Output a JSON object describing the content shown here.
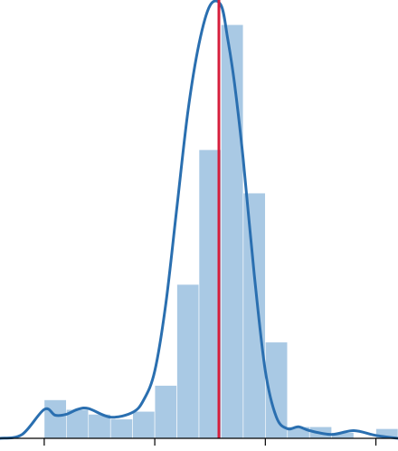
{
  "chart_data": {
    "type": "bar",
    "title": "",
    "xlabel": "",
    "ylabel": "",
    "x_range": [
      -2.0,
      16.0
    ],
    "ylim": [
      0,
      0.45
    ],
    "grid": false,
    "legend": "none",
    "colors": {
      "histogram": "#a9c9e4",
      "kde": "#2a6fb0",
      "reference_line": "#d61e3c"
    },
    "bin_width": 1.0,
    "histogram": {
      "bin_edges": [
        0,
        1,
        2,
        3,
        4,
        5,
        6,
        7,
        8,
        9,
        10,
        11,
        12,
        13,
        14,
        15,
        16
      ],
      "values": [
        0.04,
        0.03,
        0.025,
        0.02,
        0.028,
        0.055,
        0.16,
        0.3,
        0.43,
        0.255,
        0.1,
        0.012,
        0.012,
        0.006,
        0,
        0.01
      ]
    },
    "kde": {
      "x": [
        -2,
        -1,
        0,
        0.5,
        1,
        1.5,
        2,
        3,
        4,
        4.5,
        5,
        5.5,
        6,
        6.5,
        7,
        7.5,
        8,
        8.3,
        8.6,
        9,
        9.5,
        10,
        10.5,
        11,
        11.5,
        12,
        13,
        14,
        15,
        16
      ],
      "y": [
        0,
        0.004,
        0.03,
        0.024,
        0.025,
        0.03,
        0.031,
        0.022,
        0.027,
        0.04,
        0.07,
        0.14,
        0.24,
        0.34,
        0.41,
        0.45,
        0.45,
        0.415,
        0.37,
        0.29,
        0.17,
        0.07,
        0.022,
        0.01,
        0.012,
        0.008,
        0.004,
        0.008,
        0.003,
        0
      ]
    },
    "reference_line_x": 7.9,
    "x_ticks": [
      0,
      5,
      10,
      15
    ]
  }
}
